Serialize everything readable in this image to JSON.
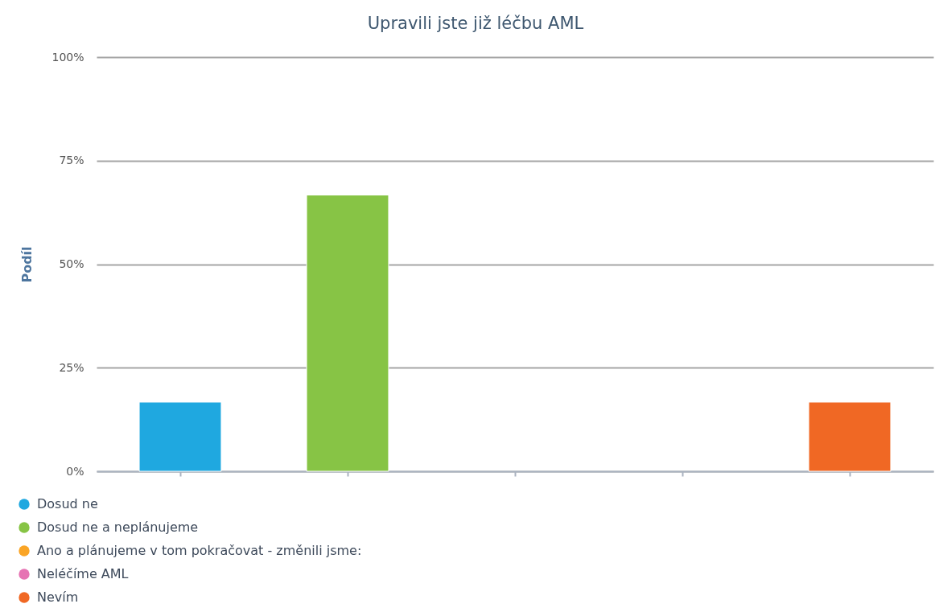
{
  "chart_data": {
    "type": "bar",
    "title": "Upravili jste již léčbu AML",
    "ylabel": "Podíl",
    "categories": [
      null,
      null,
      null,
      null,
      null
    ],
    "series": [
      {
        "name": "Dosud ne",
        "color": "#1fa8e0",
        "values": [
          16.7,
          null,
          null,
          null,
          null
        ]
      },
      {
        "name": "Dosud ne a neplánujeme",
        "color": "#87c445",
        "values": [
          null,
          66.7,
          null,
          null,
          null
        ]
      },
      {
        "name": "Ano a plánujeme v tom pokračovat - změnili jsme:",
        "color": "#faa526",
        "values": [
          null,
          null,
          null,
          null,
          null
        ]
      },
      {
        "name": "Neléčíme AML",
        "color": "#e673b3",
        "values": [
          null,
          null,
          null,
          null,
          null
        ]
      },
      {
        "name": "Nevím",
        "color": "#f06824",
        "values": [
          null,
          null,
          null,
          null,
          16.7
        ]
      }
    ],
    "ylim": [
      0,
      100
    ],
    "yticks": [
      {
        "value": 0,
        "label": "0%"
      },
      {
        "value": 25,
        "label": "25%"
      },
      {
        "value": 50,
        "label": "50%"
      },
      {
        "value": 75,
        "label": "75%"
      },
      {
        "value": 100,
        "label": "100%"
      }
    ],
    "tick_labels": "y",
    "grid": "y",
    "legend": "bottom"
  }
}
